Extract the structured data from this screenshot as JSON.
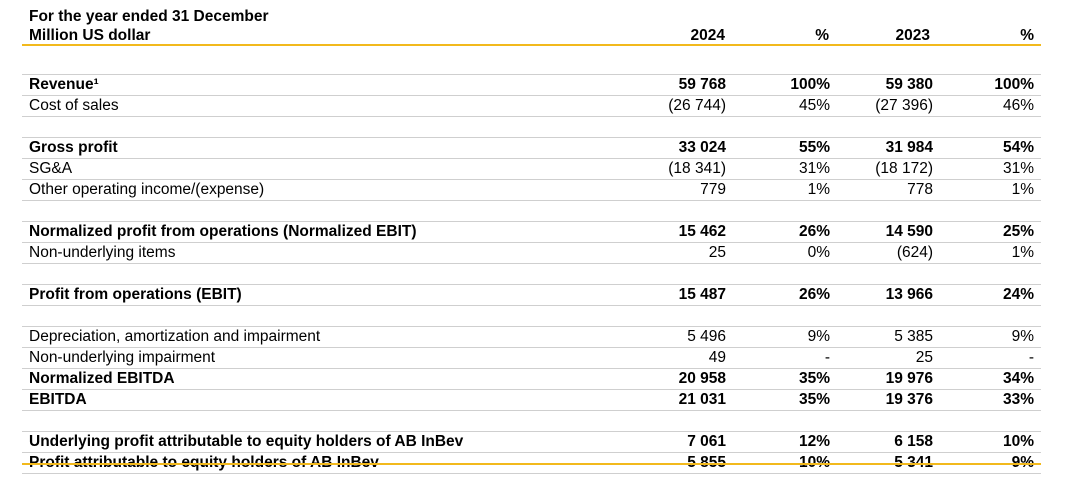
{
  "header": {
    "line1": "For the year ended 31 December",
    "line2": "Million US dollar",
    "columns": [
      "2024",
      "%",
      "2023",
      "%"
    ]
  },
  "colors": {
    "accent": "#f2b91c",
    "rule": "#cfcfcf"
  },
  "rows": [
    {
      "label": "",
      "values": [
        "",
        "",
        "",
        ""
      ]
    },
    {
      "label": "Revenue¹",
      "values": [
        "59 768",
        "100%",
        "59 380",
        "100%"
      ],
      "bold": true
    },
    {
      "label": "Cost of sales",
      "values": [
        "(26 744)",
        "45%",
        "(27 396)",
        "46%"
      ]
    },
    {
      "label": "",
      "values": [
        "",
        "",
        "",
        ""
      ]
    },
    {
      "label": "Gross profit",
      "values": [
        "33 024",
        "55%",
        "31 984",
        "54%"
      ],
      "bold": true
    },
    {
      "label": "SG&A",
      "values": [
        "(18 341)",
        "31%",
        "(18 172)",
        "31%"
      ]
    },
    {
      "label": "Other operating income/(expense)",
      "values": [
        "779",
        "1%",
        "778",
        "1%"
      ]
    },
    {
      "label": "",
      "values": [
        "",
        "",
        "",
        ""
      ]
    },
    {
      "label": "Normalized profit from operations (Normalized EBIT)",
      "values": [
        "15 462",
        "26%",
        "14 590",
        "25%"
      ],
      "bold": true
    },
    {
      "label": "Non-underlying items",
      "values": [
        "25",
        "0%",
        "(624)",
        "1%"
      ]
    },
    {
      "label": "",
      "values": [
        "",
        "",
        "",
        ""
      ]
    },
    {
      "label": "Profit from operations (EBIT)",
      "values": [
        "15 487",
        "26%",
        "13 966",
        "24%"
      ],
      "bold": true
    },
    {
      "label": "",
      "values": [
        "",
        "",
        "",
        ""
      ]
    },
    {
      "label": "Depreciation, amortization and impairment",
      "values": [
        "5 496",
        "9%",
        "5 385",
        "9%"
      ]
    },
    {
      "label": "Non-underlying impairment",
      "values": [
        "49",
        "-",
        "25",
        "-"
      ]
    },
    {
      "label": "Normalized EBITDA",
      "values": [
        "20 958",
        "35%",
        "19 976",
        "34%"
      ],
      "bold": true
    },
    {
      "label": "EBITDA",
      "values": [
        "21 031",
        "35%",
        "19 376",
        "33%"
      ],
      "bold": true
    },
    {
      "label": "",
      "values": [
        "",
        "",
        "",
        ""
      ]
    },
    {
      "label": "Underlying profit attributable to equity holders of AB InBev",
      "values": [
        "7 061",
        "12%",
        "6 158",
        "10%"
      ],
      "bold": true
    },
    {
      "label": "Profit attributable to equity holders of AB InBev",
      "values": [
        "5 855",
        "10%",
        "5 341",
        "9%"
      ],
      "bold": true
    }
  ]
}
